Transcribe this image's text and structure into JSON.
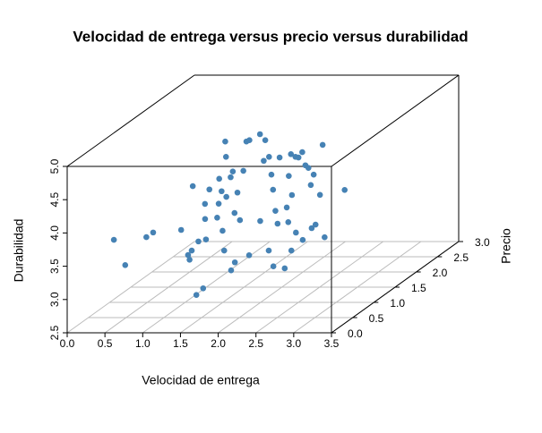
{
  "chart_data": {
    "type": "scatter3d",
    "title": "Velocidad de entrega versus precio versus durabilidad",
    "xlabel": "Velocidad de entrega",
    "ylabel": "Precio",
    "zlabel": "Durabilidad",
    "color": "#4682b4",
    "grid": true,
    "xlim": [
      0,
      3.5
    ],
    "ylim": [
      0,
      3
    ],
    "zlim": [
      2.5,
      5
    ],
    "xticks": [
      {
        "value": 0,
        "label": "0.0"
      },
      0.5,
      {
        "value": 1,
        "label": "1.0"
      },
      1.5,
      {
        "value": 2,
        "label": "2.0"
      },
      2.5,
      {
        "value": 3,
        "label": "3.0"
      },
      3.5
    ],
    "yticks": [
      {
        "value": 0,
        "label": "0.0"
      },
      0.5,
      {
        "value": 1,
        "label": "1.0"
      },
      1.5,
      {
        "value": 2,
        "label": "2.0"
      },
      2.5,
      {
        "value": 3,
        "label": "3.0"
      }
    ],
    "zticks": [
      2.5,
      {
        "value": 3,
        "label": "3.0"
      },
      3.5,
      {
        "value": 4,
        "label": "4.0"
      },
      4.5,
      {
        "value": 5,
        "label": "5.0"
      }
    ],
    "x": [
      0.45,
      0.6,
      0.88,
      0.97,
      1.06,
      1.32,
      1.34,
      1.2,
      1.43,
      1.52,
      1.12,
      1.04,
      1.22,
      0.87,
      0.76,
      0.54,
      1.22,
      1.09,
      0.89,
      1.49,
      1.21,
      1.07,
      0.97,
      0.98,
      1.43,
      1.3,
      1.21,
      1.25,
      1.43,
      1.48,
      1.5,
      1.55,
      1.75,
      1.94,
      2.14,
      2.0,
      1.69,
      1.98,
      1.84,
      2.19,
      1.9,
      1.99,
      2.2,
      2.44,
      2.31,
      2.29,
      2.31,
      2.58,
      2.52,
      2.45,
      2.22,
      1.96,
      1.94,
      1.89,
      1.63,
      1.44,
      1.67,
      1.77,
      2.84,
      2.73,
      2.26,
      2.72,
      2.67,
      2.62,
      2.96,
      2.6,
      1.2,
      1.94,
      1.29,
      2.24
    ],
    "y": [
      0.3,
      0.3,
      0.3,
      0.3,
      0.8,
      0.5,
      0.5,
      0.8,
      0.5,
      0.5,
      1.1,
      1.4,
      1.1,
      1.7,
      2.0,
      2.0,
      1.4,
      1.7,
      2.0,
      1.1,
      1.7,
      2.0,
      2.0,
      2.0,
      1.4,
      1.7,
      2.0,
      2.0,
      2.0,
      2.0,
      2.0,
      2.0,
      1.7,
      1.4,
      1.1,
      1.4,
      2.0,
      1.7,
      2.0,
      1.4,
      2.0,
      2.0,
      1.7,
      1.4,
      1.7,
      1.1,
      1.1,
      0.8,
      0.8,
      0.5,
      0.8,
      0.8,
      0.5,
      0.5,
      0.8,
      1.1,
      1.1,
      1.4,
      0.8,
      1.1,
      2.0,
      1.7,
      0.8,
      1.1,
      0.8,
      0.5,
      1.4,
      2.0,
      2.0,
      1.7
    ],
    "z": [
      3.76,
      3.38,
      3.8,
      3.87,
      3.68,
      3.44,
      3.37,
      3.37,
      2.84,
      2.94,
      3.37,
      3.57,
      3.4,
      3.66,
      3.74,
      3.79,
      3.8,
      3.85,
      3.9,
      4.04,
      4.06,
      4.01,
      4.46,
      4.23,
      3.66,
      3.83,
      4.02,
      4.46,
      4.57,
      4.17,
      4.48,
      4.23,
      4.1,
      4.01,
      3.83,
      3.5,
      4.22,
      4.08,
      4.27,
      3.93,
      4.23,
      4.3,
      4.24,
      4.08,
      4.1,
      3.88,
      3.66,
      3.64,
      3.37,
      3.27,
      3.37,
      3.3,
      3.33,
      3.21,
      3.37,
      3.53,
      3.69,
      3.54,
      3.76,
      4.07,
      4.41,
      3.87,
      3.53,
      3.57,
      3.57,
      3.24,
      3.59,
      4.22,
      4.48,
      4.2
    ]
  }
}
